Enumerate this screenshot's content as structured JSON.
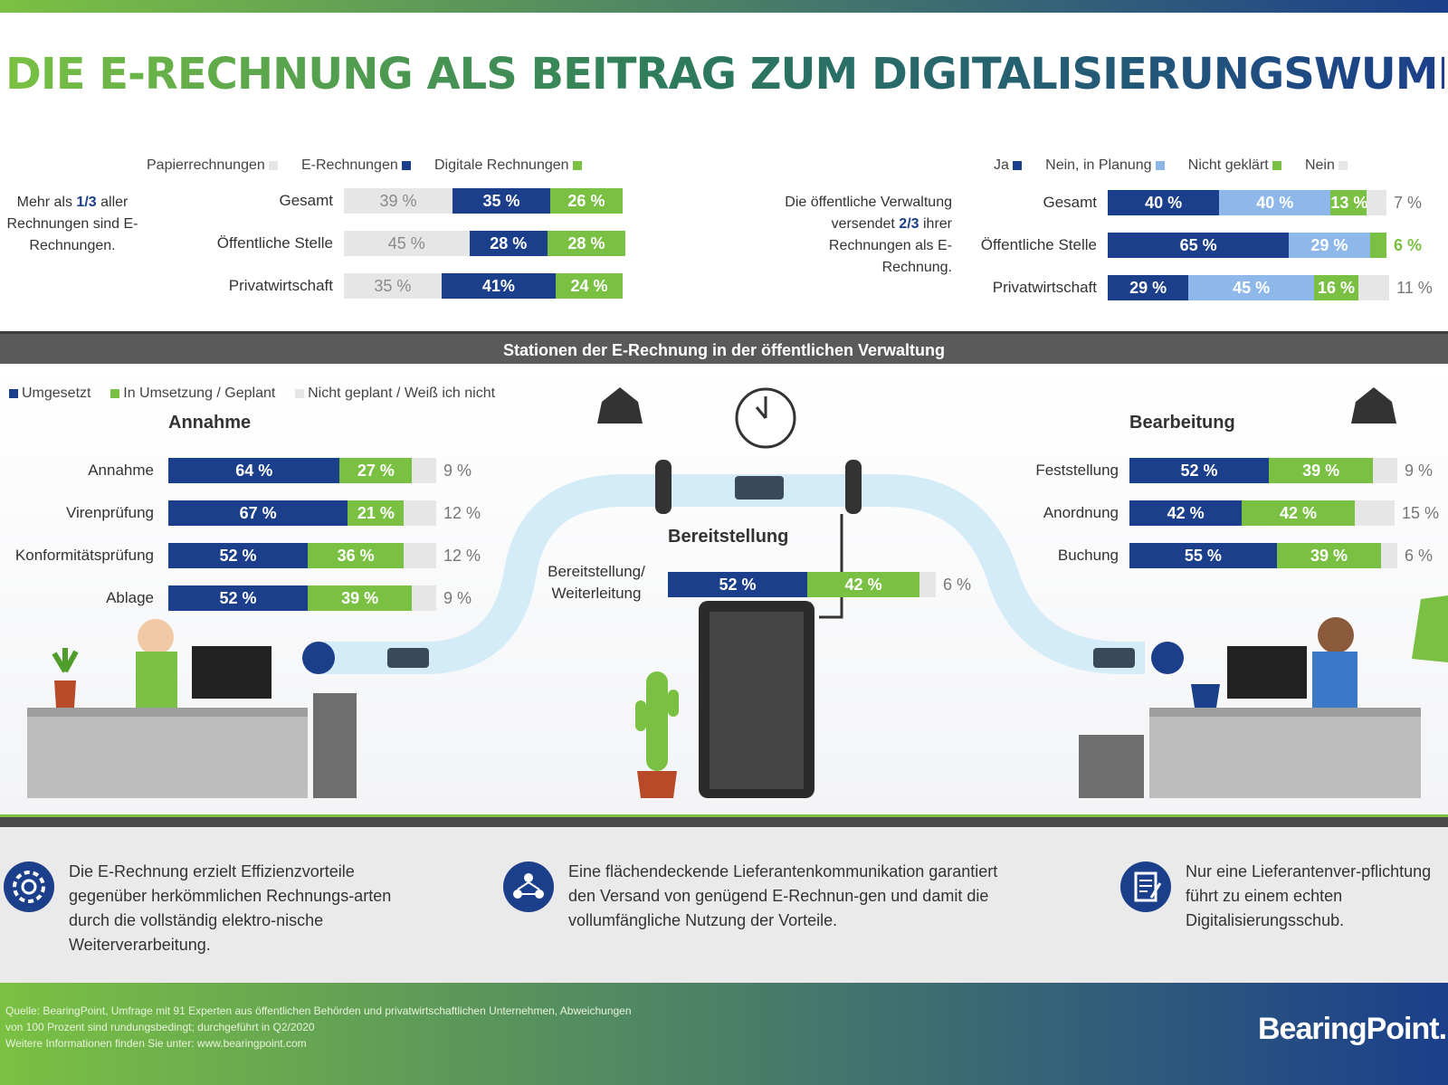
{
  "title": "DIE E-RECHNUNG ALS BEITRAG ZUM DIGITALISIERUNGSWUMMS",
  "colors": {
    "navy": "#1b3f8b",
    "green": "#7ac143",
    "light_blue": "#8fb8ea",
    "grey": "#e6e6e6"
  },
  "chart_data": [
    {
      "type": "bar",
      "stacked": true,
      "orientation": "horizontal",
      "legend": [
        "Papierrechnungen",
        "E-Rechnungen",
        "Digitale Rechnungen"
      ],
      "categories": [
        "Gesamt",
        "Öffentliche Stelle",
        "Privatwirtschaft"
      ],
      "series": [
        {
          "name": "Papierrechnungen",
          "values": [
            39,
            45,
            35
          ],
          "labels": [
            "39 %",
            "45 %",
            "35 %"
          ]
        },
        {
          "name": "E-Rechnungen",
          "values": [
            35,
            28,
            41
          ],
          "labels": [
            "35 %",
            "28 %",
            "41%"
          ]
        },
        {
          "name": "Digitale Rechnungen",
          "values": [
            26,
            28,
            24
          ],
          "labels": [
            "26 %",
            "28 %",
            "24 %"
          ]
        }
      ],
      "note": [
        "Mehr als ",
        "1/3",
        " aller Rechnungen sind E-Rechnungen."
      ]
    },
    {
      "type": "bar",
      "stacked": true,
      "orientation": "horizontal",
      "legend": [
        "Ja",
        "Nein, in Planung",
        "Nicht geklärt",
        "Nein"
      ],
      "categories": [
        "Gesamt",
        "Öffentliche Stelle",
        "Privatwirtschaft"
      ],
      "series": [
        {
          "name": "Ja",
          "values": [
            40,
            65,
            29
          ],
          "labels": [
            "40 %",
            "65 %",
            "29 %"
          ]
        },
        {
          "name": "Nein, in Planung",
          "values": [
            40,
            29,
            45
          ],
          "labels": [
            "40 %",
            "29 %",
            "45 %"
          ]
        },
        {
          "name": "Nicht geklärt",
          "values": [
            13,
            6,
            16
          ],
          "labels": [
            "13 %",
            "6 %",
            "16 %"
          ]
        },
        {
          "name": "Nein",
          "values": [
            7,
            0,
            11
          ],
          "labels": [
            "7 %",
            "",
            "11 %"
          ]
        }
      ],
      "note": [
        "Die öffentliche Verwaltung versendet ",
        "2/3",
        " ihrer Rechnungen als E-Rechnung."
      ]
    },
    {
      "type": "bar",
      "stacked": true,
      "orientation": "horizontal",
      "title": "Annahme",
      "legend": [
        "Umgesetzt",
        "In Umsetzung / Geplant",
        "Nicht geplant / Weiß ich nicht"
      ],
      "categories": [
        "Annahme",
        "Virenprüfung",
        "Konformitätsprüfung",
        "Ablage"
      ],
      "series": [
        {
          "name": "Umgesetzt",
          "values": [
            64,
            67,
            52,
            52
          ],
          "labels": [
            "64 %",
            "67 %",
            "52 %",
            "52 %"
          ]
        },
        {
          "name": "In Umsetzung / Geplant",
          "values": [
            27,
            21,
            36,
            39
          ],
          "labels": [
            "27 %",
            "21 %",
            "36 %",
            "39 %"
          ]
        },
        {
          "name": "Nicht geplant / Weiß ich nicht",
          "values": [
            9,
            12,
            12,
            9
          ],
          "labels": [
            "9 %",
            "12 %",
            "12 %",
            "9 %"
          ]
        }
      ]
    },
    {
      "type": "bar",
      "stacked": true,
      "orientation": "horizontal",
      "title": "Bereitstellung",
      "categories": [
        "Bereitstellung/ Weiterleitung"
      ],
      "series": [
        {
          "name": "Umgesetzt",
          "values": [
            52
          ],
          "labels": [
            "52 %"
          ]
        },
        {
          "name": "In Umsetzung / Geplant",
          "values": [
            42
          ],
          "labels": [
            "42 %"
          ]
        },
        {
          "name": "Nicht geplant / Weiß ich nicht",
          "values": [
            6
          ],
          "labels": [
            "6 %"
          ]
        }
      ]
    },
    {
      "type": "bar",
      "stacked": true,
      "orientation": "horizontal",
      "title": "Bearbeitung",
      "categories": [
        "Feststellung",
        "Anordnung",
        "Buchung"
      ],
      "series": [
        {
          "name": "Umgesetzt",
          "values": [
            52,
            42,
            55
          ],
          "labels": [
            "52 %",
            "42 %",
            "55 %"
          ]
        },
        {
          "name": "In Umsetzung / Geplant",
          "values": [
            39,
            42,
            39
          ],
          "labels": [
            "39 %",
            "42 %",
            "39 %"
          ]
        },
        {
          "name": "Nicht geplant / Weiß ich nicht",
          "values": [
            9,
            15,
            6
          ],
          "labels": [
            "9 %",
            "15 %",
            "6 %"
          ]
        }
      ]
    }
  ],
  "section_band": "Stationen der E-Rechnung in der öffentlichen Verwaltung",
  "bottom_texts": [
    {
      "icon": "gear-icon",
      "text": "Die E-Rechnung erzielt Effizienzvorteile gegenüber herkömmlichen Rechnungs-arten durch die vollständig elektro-nische Weiterverarbeitung."
    },
    {
      "icon": "network-icon",
      "text": "Eine flächendeckende Lieferantenkommunikation garantiert den Versand von genügend E-Rechnun-gen und damit die vollumfängliche Nutzung der Vorteile."
    },
    {
      "icon": "document-pen-icon",
      "text": "Nur eine Lieferantenver-pflichtung führt zu einem echten Digitalisierungsschub."
    }
  ],
  "source": "Quelle: BearingPoint, Umfrage mit 91 Experten aus öffentlichen Behörden und privatwirtschaftlichen Unternehmen, Abweichungen von 100 Prozent sind rundungsbedingt; durchgeführt in Q2/2020",
  "more_info": "Weitere Informationen finden Sie unter: www.bearingpoint.com",
  "logo": "BearingPoint."
}
